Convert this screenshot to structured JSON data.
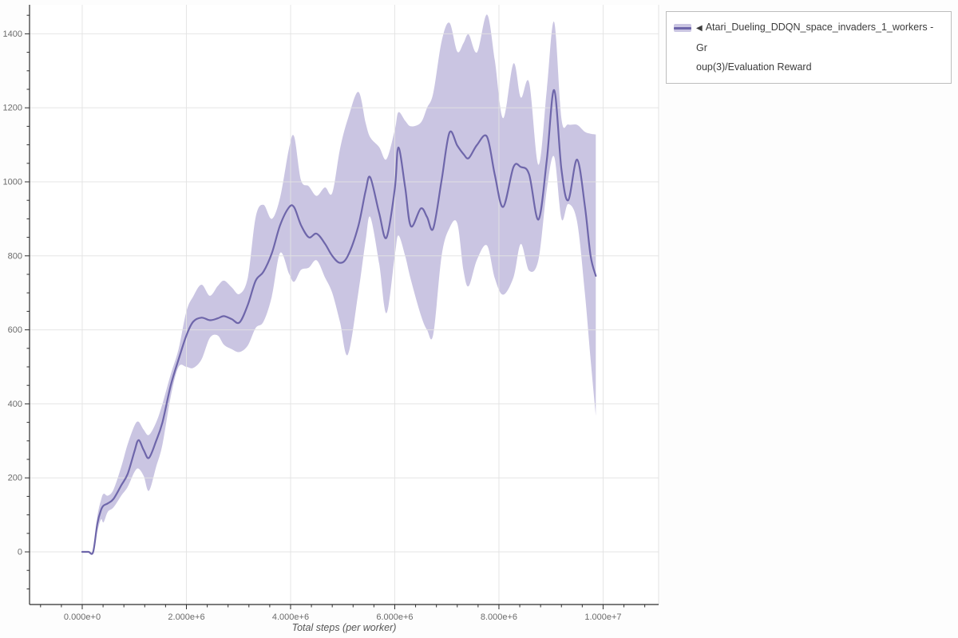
{
  "legend": {
    "collapse_marker": "◀",
    "label_lines": [
      "Atari_Dueling_DDQN_space_invaders_1_workers - Gr",
      "oup(3)/Evaluation Reward"
    ],
    "border_color": "#bdbdbd",
    "text_color": "#3c3c3c"
  },
  "chart_data": {
    "type": "line",
    "title": "",
    "xlabel": "Total steps (per worker)",
    "ylabel": "",
    "grid": true,
    "legend_position": "top-right-outside",
    "axes": {
      "x": {
        "tick_labels": [
          "0.000e+0",
          "2.000e+6",
          "4.000e+6",
          "6.000e+6",
          "8.000e+6",
          "1.000e+7"
        ],
        "tick_values_e6": [
          0,
          2,
          4,
          6,
          8,
          10
        ],
        "minor_step_e6": 0.4,
        "range_e6": [
          -1.0115,
          11.066
        ]
      },
      "y": {
        "tick_labels": [
          "0",
          "200",
          "400",
          "600",
          "800",
          "1000",
          "1200",
          "1400"
        ],
        "tick_values": [
          0,
          200,
          400,
          600,
          800,
          1000,
          1200,
          1400
        ],
        "minor_step": 50,
        "range": [
          -142.2,
          1478.4
        ]
      }
    },
    "series": [
      {
        "name": "Atari_Dueling_DDQN_space_invaders_1_workers - Group(3)/Evaluation Reward",
        "x_millions": [
          0.0,
          0.12,
          0.21,
          0.29,
          0.36,
          0.41,
          0.49,
          0.6,
          0.75,
          0.87,
          1.0,
          1.08,
          1.18,
          1.28,
          1.42,
          1.54,
          1.7,
          1.85,
          2.0,
          2.13,
          2.29,
          2.45,
          2.6,
          2.72,
          2.87,
          3.02,
          3.18,
          3.33,
          3.48,
          3.64,
          3.8,
          3.97,
          4.07,
          4.2,
          4.35,
          4.5,
          4.66,
          4.8,
          4.95,
          5.1,
          5.3,
          5.44,
          5.53,
          5.7,
          5.84,
          6.0,
          6.07,
          6.2,
          6.31,
          6.5,
          6.62,
          6.74,
          6.9,
          7.05,
          7.2,
          7.32,
          7.42,
          7.58,
          7.77,
          7.92,
          8.08,
          8.28,
          8.42,
          8.58,
          8.76,
          8.92,
          9.06,
          9.2,
          9.33,
          9.5,
          9.65,
          9.76,
          9.86
        ],
        "mean": [
          0,
          0,
          0,
          76,
          113,
          125,
          131,
          143,
          180,
          210,
          270,
          302,
          275,
          254,
          300,
          350,
          450,
          520,
          585,
          622,
          633,
          626,
          631,
          637,
          629,
          620,
          668,
          733,
          757,
          807,
          883,
          931,
          931,
          883,
          850,
          860,
          833,
          800,
          781,
          800,
          880,
          975,
          1012,
          916,
          849,
          981,
          1093,
          985,
          880,
          928,
          905,
          874,
          1005,
          1133,
          1098,
          1075,
          1064,
          1100,
          1122,
          1020,
          932,
          1040,
          1040,
          1020,
          898,
          1060,
          1248,
          1033,
          950,
          1060,
          935,
          800,
          746
        ],
        "band_low": [
          0,
          0,
          0,
          55,
          88,
          80,
          108,
          120,
          152,
          175,
          215,
          225,
          205,
          165,
          230,
          290,
          420,
          500,
          500,
          497,
          520,
          578,
          585,
          560,
          548,
          540,
          558,
          605,
          622,
          690,
          808,
          752,
          730,
          762,
          768,
          788,
          742,
          700,
          620,
          533,
          700,
          840,
          905,
          780,
          645,
          800,
          855,
          800,
          735,
          640,
          600,
          588,
          800,
          875,
          888,
          760,
          718,
          790,
          828,
          740,
          695,
          742,
          832,
          760,
          790,
          980,
          1068,
          900,
          940,
          893,
          700,
          520,
          368
        ],
        "band_high": [
          0,
          0,
          0,
          95,
          140,
          157,
          152,
          168,
          230,
          290,
          340,
          352,
          330,
          316,
          350,
          400,
          480,
          548,
          650,
          690,
          722,
          692,
          718,
          733,
          715,
          697,
          742,
          905,
          938,
          900,
          958,
          1090,
          1122,
          1005,
          988,
          962,
          985,
          970,
          1090,
          1170,
          1243,
          1160,
          1120,
          1094,
          1061,
          1140,
          1188,
          1165,
          1150,
          1160,
          1200,
          1240,
          1380,
          1430,
          1352,
          1375,
          1398,
          1350,
          1452,
          1330,
          1172,
          1320,
          1228,
          1268,
          1046,
          1250,
          1432,
          1170,
          1155,
          1154,
          1135,
          1130,
          1128
        ]
      }
    ],
    "colors": {
      "line": "#6e66aa",
      "band": "#cac5e2",
      "grid": "#e2e2e2",
      "axis": "#2e2e2e",
      "tick_label": "#6b6b6b",
      "axis_title": "#555555"
    }
  }
}
